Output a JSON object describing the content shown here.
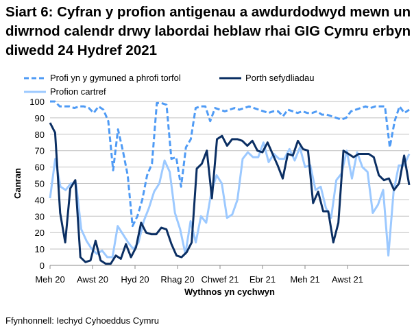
{
  "title": "Siart 6: Cyfran y profion antigenau a awdurdodwyd mewn un diwrnod calendr drwy labordai heblaw rhai GIG Cymru erbyn diwedd 24 Hydref 2021",
  "source": "Ffynhonnell: Iechyd Cyhoeddus Cymru",
  "chart_data": {
    "type": "line",
    "xlabel": "Wythnos yn cychwyn",
    "ylabel": "Canran",
    "ylim": [
      0,
      100
    ],
    "yticks": [
      0,
      10,
      20,
      30,
      40,
      50,
      60,
      70,
      80,
      90,
      100
    ],
    "xticklabels": [
      "Meh 20",
      "Awst 20",
      "Hyd 20",
      "Rhag 20",
      "Chwef 21",
      "Ebr 21",
      "Meh 21",
      "Awst 21"
    ],
    "grid": true,
    "legend": "top",
    "series": [
      {
        "name": "Profi yn y gymuned a phrofi torfol",
        "color": "#4f9bf5",
        "dashed": true,
        "values": [
          100,
          100,
          97,
          97,
          97,
          96,
          97,
          97,
          96,
          93,
          97,
          95,
          88,
          58,
          83,
          70,
          55,
          24,
          30,
          40,
          55,
          62,
          99,
          99,
          98,
          65,
          66,
          48,
          72,
          77,
          96,
          97,
          97,
          88,
          96,
          95,
          94,
          95,
          96,
          95,
          96,
          97,
          96,
          95,
          94,
          93,
          94,
          94,
          91,
          95,
          94,
          93,
          94,
          93,
          93,
          94,
          92,
          92,
          91,
          90,
          89,
          90,
          94,
          95,
          96,
          97,
          96,
          97,
          97,
          97,
          72,
          88,
          97,
          93,
          95
        ]
      },
      {
        "name": "Porth sefydliadau",
        "color": "#0b2f63",
        "dashed": false,
        "values": [
          87,
          81,
          32,
          14,
          47,
          52,
          5,
          2,
          3,
          15,
          3,
          1,
          1,
          6,
          4,
          13,
          5,
          11,
          26,
          20,
          19,
          19,
          23,
          22,
          13,
          6,
          5,
          8,
          14,
          59,
          62,
          70,
          41,
          77,
          79,
          73,
          77,
          77,
          76,
          73,
          76,
          70,
          69,
          75,
          68,
          61,
          53,
          68,
          67,
          76,
          71,
          70,
          38,
          45,
          33,
          33,
          14,
          26,
          70,
          68,
          66,
          68,
          68,
          68,
          66,
          55,
          52,
          53,
          46,
          50,
          67,
          49
        ]
      },
      {
        "name": "Profion cartref",
        "color": "#9cc9ff",
        "dashed": false,
        "values": [
          41,
          65,
          48,
          46,
          50,
          50,
          22,
          15,
          10,
          7,
          9,
          5,
          5,
          24,
          19,
          14,
          10,
          14,
          27,
          35,
          45,
          50,
          64,
          57,
          32,
          22,
          7,
          27,
          14,
          30,
          26,
          45,
          55,
          50,
          29,
          31,
          40,
          65,
          69,
          66,
          66,
          75,
          63,
          68,
          65,
          65,
          71,
          64,
          72,
          60,
          61,
          46,
          48,
          35,
          29,
          52,
          56,
          70,
          53,
          69,
          60,
          57,
          32,
          37,
          46,
          6,
          45,
          61,
          61,
          68
        ]
      }
    ]
  }
}
